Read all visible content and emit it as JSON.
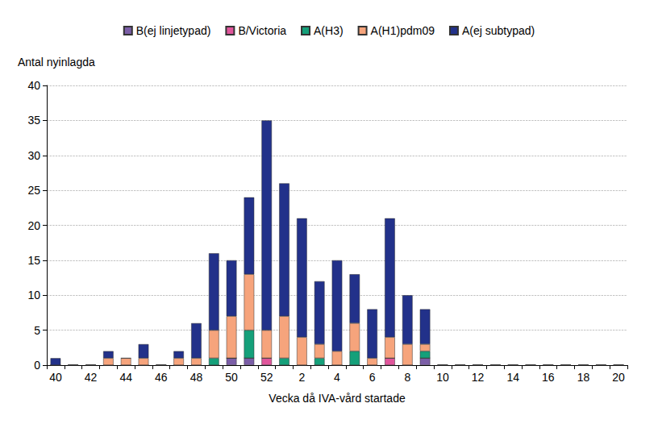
{
  "chart_data": {
    "type": "bar",
    "stacked": true,
    "grid": true,
    "legend": "top",
    "y_label": "Antal nyinlagda",
    "x_label": "Vecka då IVA-vård startade",
    "categories": [
      "40",
      null,
      "42",
      null,
      "44",
      null,
      "46",
      null,
      "48",
      null,
      "50",
      null,
      "52",
      null,
      "2",
      null,
      "4",
      null,
      "6",
      null,
      "8",
      null,
      "10",
      null,
      "12",
      null,
      "14",
      null,
      "16",
      null,
      "18",
      null,
      "20"
    ],
    "ylim": [
      0,
      40
    ],
    "yticks": [
      0,
      5,
      10,
      15,
      20,
      25,
      30,
      35,
      40
    ],
    "series": [
      {
        "name": "B(ej linjetypad)",
        "color": "#7b5ea7",
        "values": [
          0,
          0,
          0,
          0,
          0,
          0,
          0,
          0,
          0,
          0,
          1,
          1,
          0,
          0,
          0,
          0,
          0,
          0,
          0,
          0,
          0,
          1,
          0,
          0,
          0,
          0,
          0,
          0,
          0,
          0,
          0,
          0,
          0
        ]
      },
      {
        "name": "B/Victoria",
        "color": "#e0559b",
        "values": [
          0,
          0,
          0,
          0,
          0,
          0,
          0,
          0,
          0,
          0,
          0,
          0,
          1,
          0,
          0,
          0,
          0,
          0,
          0,
          1,
          0,
          0,
          0,
          0,
          0,
          0,
          0,
          0,
          0,
          0,
          0,
          0,
          0
        ]
      },
      {
        "name": "A(H3)",
        "color": "#15a07a",
        "values": [
          0,
          0,
          0,
          0,
          0,
          0,
          0,
          0,
          0,
          1,
          0,
          4,
          0,
          1,
          0,
          1,
          0,
          2,
          0,
          0,
          0,
          1,
          0,
          0,
          0,
          0,
          0,
          0,
          0,
          0,
          0,
          0,
          0
        ]
      },
      {
        "name": "A(H1)pdm09",
        "color": "#f6a47c",
        "values": [
          0,
          0,
          0,
          1,
          1,
          1,
          0,
          1,
          1,
          4,
          6,
          8,
          4,
          6,
          4,
          2,
          2,
          4,
          1,
          3,
          3,
          1,
          0,
          0,
          0,
          0,
          0,
          0,
          0,
          0,
          0,
          0,
          0
        ]
      },
      {
        "name": "A(ej subtypad)",
        "color": "#22318a",
        "values": [
          1,
          0,
          0,
          1,
          0,
          2,
          0,
          1,
          5,
          11,
          8,
          11,
          30,
          19,
          17,
          9,
          13,
          7,
          7,
          17,
          7,
          5,
          0,
          0,
          0,
          0,
          0,
          0,
          0,
          0,
          0,
          0,
          0
        ]
      }
    ]
  }
}
